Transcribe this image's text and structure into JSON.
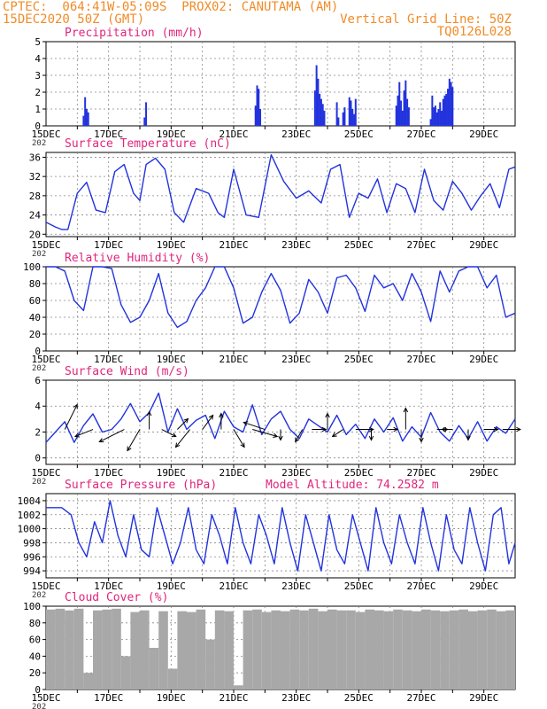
{
  "header": {
    "line1": "CPTEC:  064:41W-05:09S  PROX02: CANUTAMA (AM)",
    "line2": "15DEC2020 50Z (GMT)",
    "grid_note": "Vertical Grid Line: 50Z",
    "code": "TQ0126L028"
  },
  "x_ticks": [
    "15DEC",
    "17DEC",
    "19DEC",
    "21DEC",
    "23DEC",
    "25DEC",
    "27DEC",
    "29DEC"
  ],
  "x_sublabel": "202",
  "colors": {
    "title": "#e0267c",
    "header": "#f08c28",
    "series": "#2233dd",
    "cloud": "#a8a8a8",
    "grid": "#888888"
  },
  "chart_data": [
    {
      "id": "precip",
      "type": "bar",
      "title": "Precipitation (mm/h)",
      "ylim": [
        0,
        5
      ],
      "yticks": [
        0,
        1,
        2,
        3,
        4,
        5
      ],
      "xlim": [
        0,
        15
      ],
      "x": [
        1.2,
        1.25,
        1.3,
        1.35,
        3.15,
        3.2,
        6.7,
        6.75,
        6.8,
        6.85,
        8.6,
        8.65,
        8.7,
        8.75,
        8.8,
        8.85,
        8.9,
        9.3,
        9.35,
        9.5,
        9.55,
        9.7,
        9.75,
        9.8,
        9.85,
        9.9,
        11.2,
        11.25,
        11.3,
        11.35,
        11.4,
        11.45,
        11.5,
        11.55,
        11.6,
        12.3,
        12.35,
        12.4,
        12.45,
        12.5,
        12.55,
        12.6,
        12.65,
        12.7,
        12.75,
        12.8,
        12.85,
        12.9,
        12.95,
        13.0
      ],
      "values": [
        0.6,
        1.7,
        1.0,
        0.8,
        0.5,
        1.4,
        1.2,
        2.4,
        2.2,
        1.0,
        2.1,
        3.6,
        2.8,
        1.9,
        1.6,
        1.3,
        0.9,
        1.4,
        0.5,
        0.8,
        1.1,
        1.7,
        1.5,
        1.0,
        0.7,
        1.6,
        1.2,
        1.8,
        2.6,
        1.5,
        0.9,
        2.1,
        2.7,
        1.6,
        1.1,
        0.4,
        1.8,
        1.1,
        1.2,
        0.8,
        1.0,
        1.4,
        0.9,
        1.6,
        1.8,
        1.9,
        2.2,
        2.8,
        2.6,
        2.3
      ]
    },
    {
      "id": "temp",
      "type": "line",
      "title": "Surface Temperature (nC)",
      "ylim": [
        19.5,
        37
      ],
      "yticks": [
        20,
        24,
        28,
        32,
        36
      ],
      "x": [
        0.0,
        0.3,
        0.5,
        0.7,
        1.0,
        1.3,
        1.6,
        1.9,
        2.2,
        2.5,
        2.8,
        3.0,
        3.2,
        3.5,
        3.8,
        4.1,
        4.4,
        4.8,
        5.2,
        5.5,
        5.7,
        6.0,
        6.4,
        6.8,
        7.2,
        7.6,
        8.0,
        8.4,
        8.8,
        9.1,
        9.4,
        9.7,
        10.0,
        10.3,
        10.6,
        10.9,
        11.2,
        11.5,
        11.8,
        12.1,
        12.4,
        12.7,
        13.0,
        13.3,
        13.6,
        13.9,
        14.2,
        14.5,
        14.8,
        15.0
      ],
      "values": [
        22.5,
        21.5,
        21.0,
        21.0,
        28.5,
        30.8,
        25.0,
        24.5,
        33.0,
        34.5,
        28.5,
        27.0,
        34.5,
        35.8,
        33.5,
        24.5,
        22.5,
        29.5,
        28.5,
        24.5,
        23.5,
        33.5,
        24.0,
        23.5,
        36.5,
        31.0,
        27.5,
        29.0,
        26.5,
        33.5,
        34.5,
        23.5,
        28.5,
        27.5,
        31.5,
        24.5,
        30.5,
        29.5,
        24.5,
        33.5,
        27.0,
        25.0,
        31.0,
        28.5,
        25.0,
        28.0,
        30.5,
        25.5,
        33.5,
        34.0
      ]
    },
    {
      "id": "rh",
      "type": "line",
      "title": "Relative Humidity (%)",
      "ylim": [
        0,
        100
      ],
      "yticks": [
        0,
        20,
        40,
        60,
        80,
        100
      ],
      "x": [
        0.0,
        0.3,
        0.6,
        0.9,
        1.2,
        1.5,
        1.8,
        2.1,
        2.4,
        2.7,
        3.0,
        3.3,
        3.6,
        3.9,
        4.2,
        4.5,
        4.8,
        5.1,
        5.4,
        5.7,
        6.0,
        6.3,
        6.6,
        6.9,
        7.2,
        7.5,
        7.8,
        8.1,
        8.4,
        8.7,
        9.0,
        9.3,
        9.6,
        9.9,
        10.2,
        10.5,
        10.8,
        11.1,
        11.4,
        11.7,
        12.0,
        12.3,
        12.6,
        12.9,
        13.2,
        13.5,
        13.8,
        14.1,
        14.4,
        14.7,
        15.0
      ],
      "values": [
        100,
        100,
        95,
        60,
        48,
        100,
        100,
        98,
        55,
        34,
        40,
        60,
        92,
        45,
        28,
        35,
        60,
        75,
        100,
        100,
        75,
        33,
        40,
        70,
        92,
        72,
        33,
        45,
        85,
        70,
        45,
        87,
        90,
        75,
        47,
        90,
        75,
        80,
        60,
        92,
        70,
        35,
        95,
        70,
        95,
        100,
        100,
        75,
        90,
        40,
        45
      ]
    },
    {
      "id": "wind",
      "type": "line",
      "title": "Surface Wind (m/s)",
      "ylim": [
        -0.5,
        6
      ],
      "yticks": [
        0,
        2,
        4,
        6
      ],
      "x": [
        0.0,
        0.3,
        0.6,
        0.9,
        1.2,
        1.5,
        1.8,
        2.1,
        2.4,
        2.7,
        3.0,
        3.3,
        3.6,
        3.9,
        4.2,
        4.5,
        4.8,
        5.1,
        5.4,
        5.7,
        6.0,
        6.3,
        6.6,
        6.9,
        7.2,
        7.5,
        7.8,
        8.1,
        8.4,
        8.7,
        9.0,
        9.3,
        9.6,
        9.9,
        10.2,
        10.5,
        10.8,
        11.1,
        11.4,
        11.7,
        12.0,
        12.3,
        12.6,
        12.9,
        13.2,
        13.5,
        13.8,
        14.1,
        14.4,
        14.7,
        15.0
      ],
      "values": [
        1.2,
        2.0,
        2.8,
        1.2,
        2.5,
        3.4,
        2.0,
        2.2,
        3.0,
        4.2,
        2.8,
        3.5,
        5.0,
        2.0,
        3.8,
        2.2,
        2.9,
        3.3,
        1.5,
        3.6,
        2.4,
        2.0,
        4.1,
        1.8,
        3.0,
        3.6,
        2.2,
        1.5,
        3.0,
        2.5,
        2.0,
        3.3,
        1.8,
        2.6,
        1.5,
        3.0,
        2.0,
        3.1,
        1.3,
        2.4,
        1.6,
        3.5,
        2.0,
        1.3,
        2.5,
        1.5,
        2.8,
        1.3,
        2.4,
        1.9,
        3.0
      ],
      "vectors": [
        {
          "x": 0.6,
          "u": 0.35,
          "v": 0.7
        },
        {
          "x": 1.5,
          "u": -0.5,
          "v": -0.2
        },
        {
          "x": 2.5,
          "u": -0.7,
          "v": -0.35
        },
        {
          "x": 3.0,
          "u": -0.35,
          "v": -0.6
        },
        {
          "x": 3.3,
          "u": 0.0,
          "v": 0.5
        },
        {
          "x": 3.7,
          "u": 0.4,
          "v": -0.2
        },
        {
          "x": 4.2,
          "u": 0.3,
          "v": 0.3
        },
        {
          "x": 4.6,
          "u": -0.4,
          "v": -0.5
        },
        {
          "x": 5.0,
          "u": 0.3,
          "v": 0.4
        },
        {
          "x": 5.6,
          "u": 0.0,
          "v": 0.45
        },
        {
          "x": 6.0,
          "u": 0.3,
          "v": -0.5
        },
        {
          "x": 6.6,
          "u": 0.7,
          "v": -0.2
        },
        {
          "x": 7.0,
          "u": -0.6,
          "v": 0.2
        },
        {
          "x": 7.5,
          "u": 0.0,
          "v": -0.3
        },
        {
          "x": 8.2,
          "u": -0.2,
          "v": -0.35
        },
        {
          "x": 8.5,
          "u": 0.4,
          "v": 0.0
        },
        {
          "x": 9.0,
          "u": 0.0,
          "v": 0.45
        },
        {
          "x": 9.5,
          "u": -0.3,
          "v": -0.2
        },
        {
          "x": 9.9,
          "u": 0.5,
          "v": 0.0
        },
        {
          "x": 10.4,
          "u": 0.0,
          "v": -0.3
        },
        {
          "x": 10.9,
          "u": 0.3,
          "v": 0.0
        },
        {
          "x": 11.5,
          "u": 0.0,
          "v": 0.6
        },
        {
          "x": 12.0,
          "u": 0.0,
          "v": -0.35
        },
        {
          "x": 12.5,
          "u": 0.3,
          "v": 0.0
        },
        {
          "x": 13.0,
          "u": -0.3,
          "v": 0.0
        },
        {
          "x": 13.5,
          "u": 0.0,
          "v": -0.3
        },
        {
          "x": 14.0,
          "u": 0.4,
          "v": 0.0
        },
        {
          "x": 14.6,
          "u": 0.5,
          "v": 0.0
        }
      ]
    },
    {
      "id": "pres",
      "type": "line",
      "title": "Surface Pressure (hPa)",
      "annotation": "Model Altitude: 74.2582 m",
      "ylim": [
        993,
        1005
      ],
      "yticks": [
        994,
        996,
        998,
        1000,
        1002,
        1004
      ],
      "x": [
        0.0,
        0.5,
        0.8,
        1.05,
        1.3,
        1.55,
        1.8,
        2.05,
        2.3,
        2.55,
        2.8,
        3.05,
        3.3,
        3.55,
        3.8,
        4.05,
        4.3,
        4.55,
        4.8,
        5.05,
        5.3,
        5.55,
        5.8,
        6.05,
        6.3,
        6.55,
        6.8,
        7.05,
        7.3,
        7.55,
        7.8,
        8.05,
        8.3,
        8.55,
        8.8,
        9.05,
        9.3,
        9.55,
        9.8,
        10.05,
        10.3,
        10.55,
        10.8,
        11.05,
        11.3,
        11.55,
        11.8,
        12.05,
        12.3,
        12.55,
        12.8,
        13.05,
        13.3,
        13.55,
        13.8,
        14.05,
        14.3,
        14.55,
        14.8,
        15.0
      ],
      "values": [
        1003,
        1003,
        1002,
        998,
        996,
        1001,
        998,
        1004,
        999,
        996,
        1002,
        997,
        996,
        1003,
        999,
        995,
        998,
        1003,
        997,
        995,
        1002,
        999,
        995,
        1003,
        998,
        995,
        1002,
        999,
        995,
        1003,
        998,
        994,
        1002,
        998,
        994,
        1002,
        997,
        995,
        1002,
        998,
        994,
        1003,
        998,
        995,
        1002,
        998,
        995,
        1003,
        998,
        994,
        1002,
        997,
        995,
        1003,
        998,
        994,
        1002,
        1003,
        995,
        998
      ]
    },
    {
      "id": "cloud",
      "type": "bar",
      "title": "Cloud Cover (%)",
      "ylim": [
        0,
        100
      ],
      "yticks": [
        0,
        20,
        40,
        60,
        80,
        100
      ],
      "x": [
        0.0,
        0.3,
        0.6,
        0.9,
        1.2,
        1.5,
        1.8,
        2.1,
        2.4,
        2.7,
        3.0,
        3.3,
        3.6,
        3.9,
        4.2,
        4.5,
        4.8,
        5.1,
        5.4,
        5.7,
        6.0,
        6.3,
        6.6,
        6.9,
        7.2,
        7.5,
        7.8,
        8.1,
        8.4,
        8.7,
        9.0,
        9.3,
        9.6,
        9.9,
        10.2,
        10.5,
        10.8,
        11.1,
        11.4,
        11.7,
        12.0,
        12.3,
        12.6,
        12.9,
        13.2,
        13.5,
        13.8,
        14.1,
        14.4,
        14.7
      ],
      "values": [
        96,
        97,
        95,
        97,
        20,
        95,
        96,
        97,
        40,
        93,
        95,
        50,
        94,
        25,
        94,
        93,
        96,
        60,
        95,
        94,
        5,
        95,
        96,
        93,
        95,
        94,
        96,
        95,
        97,
        94,
        96,
        95,
        95,
        93,
        96,
        95,
        94,
        96,
        95,
        94,
        96,
        95,
        94,
        95,
        96,
        94,
        95,
        96,
        94,
        95
      ]
    }
  ]
}
